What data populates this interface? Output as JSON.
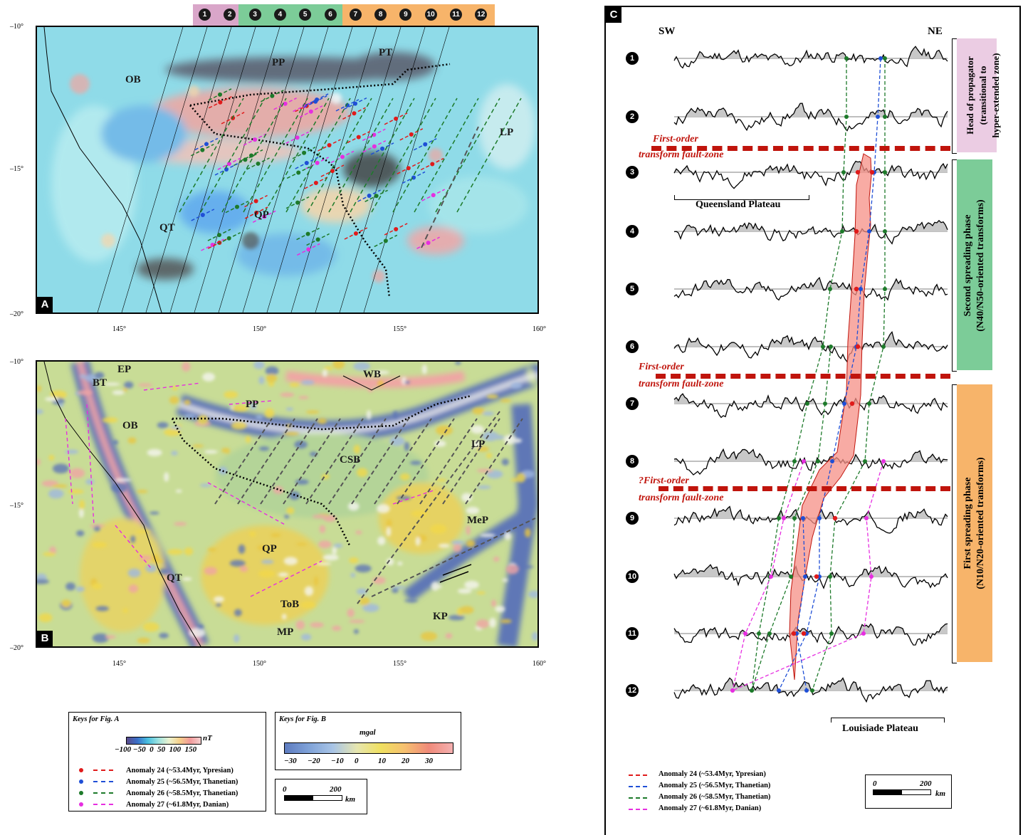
{
  "strip": {
    "numbers": [
      "1",
      "2",
      "3",
      "4",
      "5",
      "6",
      "7",
      "8",
      "9",
      "10",
      "11",
      "12"
    ],
    "colors": {
      "head": "#d9a6c9",
      "second": "#7ccc98",
      "first": "#f7b46a"
    }
  },
  "panelA": {
    "tag": "A",
    "labels": {
      "OB": "OB",
      "PP": "PP",
      "PT": "PT",
      "LP": "LP",
      "QT": "QT",
      "QP": "QP"
    },
    "lat_ticks": [
      "–10°",
      "–15°",
      "–20°"
    ],
    "lon_ticks": [
      "145°",
      "150°",
      "155°",
      "160°"
    ]
  },
  "panelB": {
    "tag": "B",
    "labels": {
      "EP": "EP",
      "BT": "BT",
      "WB": "WB",
      "PP": "PP",
      "OB": "OB",
      "CSB": "CSB",
      "LP": "LP",
      "MeP": "MeP",
      "QP": "QP",
      "QT": "QT",
      "ToB": "ToB",
      "KP": "KP",
      "MP": "MP"
    },
    "lat_ticks": [
      "–10°",
      "–15°",
      "–20°"
    ],
    "lon_ticks": [
      "145°",
      "150°",
      "155°",
      "160°"
    ]
  },
  "keysA": {
    "title": "Keys for Fig. A",
    "unit": "nT",
    "scale_ticks": "−100 −50  0  50  100  150",
    "rows": [
      {
        "label": "Anomaly 24 (~53.4Myr, Ypresian)",
        "color": "#e01b1b"
      },
      {
        "label": "Anomaly 25 (~56.5Myr, Thanetian)",
        "color": "#1f4fd6"
      },
      {
        "label": "Anomaly 26 (~58.5Myr, Thanetian)",
        "color": "#1d7a2a"
      },
      {
        "label": "Anomaly 27 (~61.8Myr, Danian)",
        "color": "#e62ee0"
      }
    ]
  },
  "keysB": {
    "title": "Keys for Fig. B",
    "unit": "mgal",
    "scale_ticks": [
      "−30",
      "−20",
      "−10",
      "0",
      "10",
      "20",
      "30"
    ]
  },
  "scaleBar": {
    "zero": "0",
    "dist": "200",
    "unit": "km"
  },
  "panelC": {
    "tag": "C",
    "sw": "SW",
    "ne": "NE",
    "profile_numbers": [
      "1",
      "2",
      "3",
      "4",
      "5",
      "6",
      "7",
      "8",
      "9",
      "10",
      "11",
      "12"
    ],
    "queensland": "Queensland Plateau",
    "louisiade": "Louisiade Plateau",
    "fault1": [
      "First-order",
      "transform fault-zone"
    ],
    "fault2": [
      "First-order",
      "transform fault-zone"
    ],
    "fault3": [
      "?First-order",
      "transform fault-zone"
    ],
    "side_head": [
      "Head of propagator",
      "(transitional  to",
      "hyper-extended zone)"
    ],
    "side_second": [
      "Second spreading phase",
      "(N40/N50-oriented transforms)"
    ],
    "side_first": [
      "First spreading phase",
      "(N10/N20-oriented transforms)"
    ],
    "legend": [
      {
        "label": "Anomaly 24 (~53.4Myr, Ypresian)",
        "color": "#e01b1b"
      },
      {
        "label": "Anomaly 25 (~56.5Myr, Thanetian)",
        "color": "#1f4fd6"
      },
      {
        "label": "Anomaly 26 (~58.5Myr, Thanetian)",
        "color": "#1d7a2a"
      },
      {
        "label": "Anomaly 27 (~61.8Myr, Danian)",
        "color": "#e62ee0"
      }
    ]
  }
}
